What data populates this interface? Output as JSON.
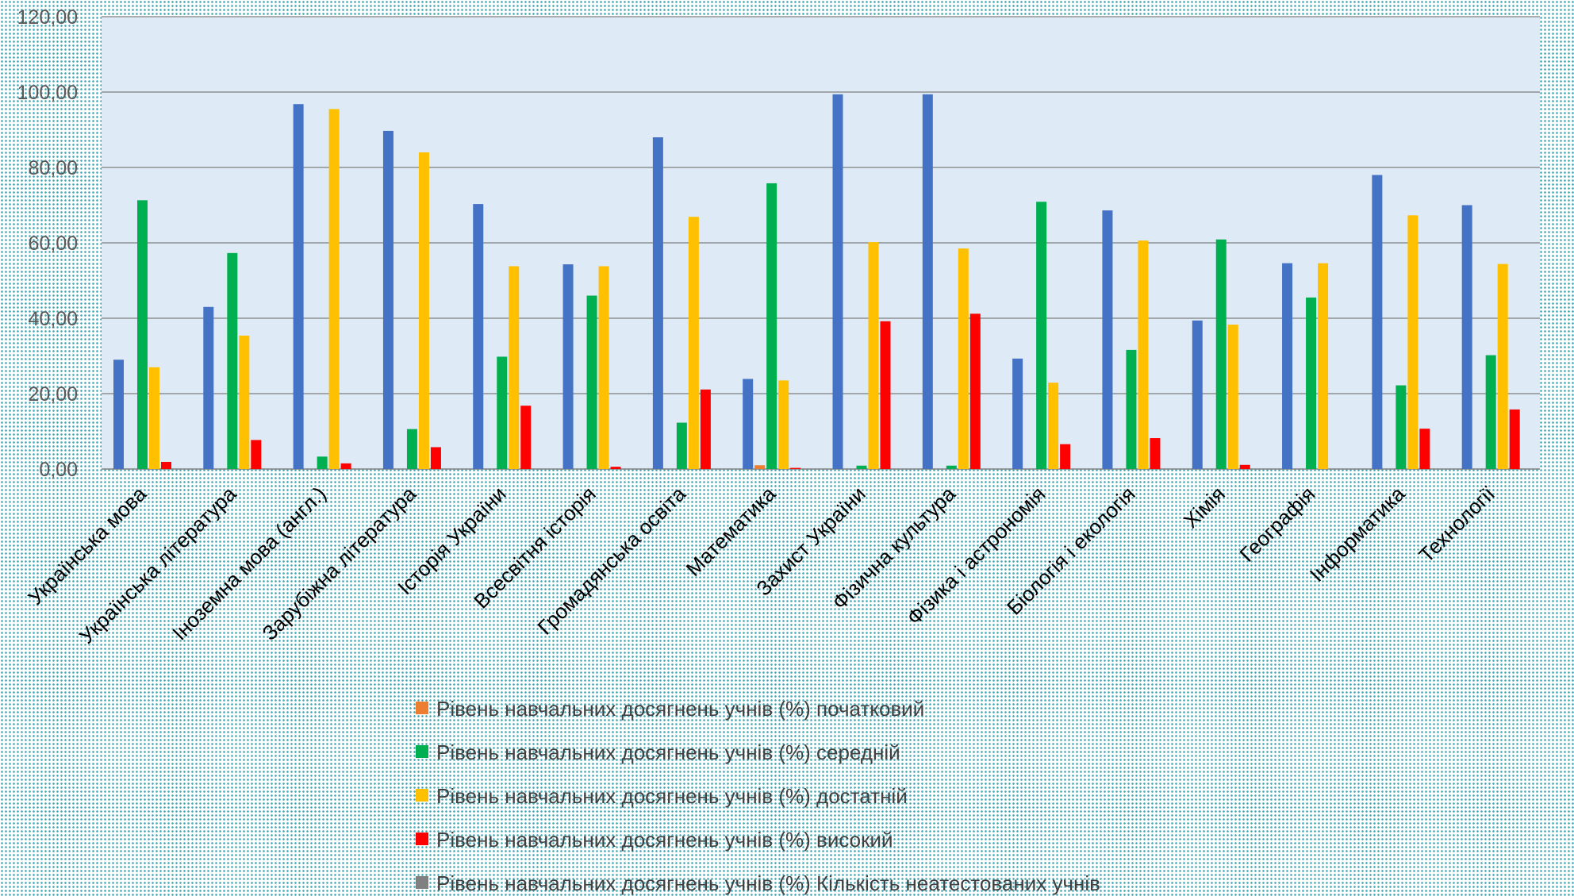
{
  "chart_data": {
    "type": "bar",
    "title": "",
    "xlabel": "",
    "ylabel": "",
    "ylim": [
      0,
      120
    ],
    "yticks": [
      0,
      20,
      40,
      60,
      80,
      100,
      120
    ],
    "ytick_labels": [
      "0,00",
      "20,00",
      "40,00",
      "60,00",
      "80,00",
      "100,00",
      "120,00"
    ],
    "grid": true,
    "legend_position": "bottom",
    "categories": [
      "Українська мова",
      "Українська література",
      "Іноземна мова (англ.)",
      "Зарубіжна література",
      "Історія України",
      "Всесвітня історія",
      "Громадянська освіта",
      "Математика",
      "Захист України",
      "Фізична культура",
      "Фізика і астрономія",
      "Біологія і екологія",
      "Хімія",
      "Географія",
      "Інформатика",
      "Технології"
    ],
    "series": [
      {
        "values": [
          29,
          43,
          96.8,
          89.7,
          70.3,
          54.3,
          88,
          23.9,
          99.4,
          99.4,
          29.3,
          68.6,
          39.4,
          54.6,
          78,
          70
        ],
        "color": "#4472C4",
        "in_legend": false
      },
      {
        "name": "Рівень навчальних досягнень учнів (%) початковий",
        "values": [
          0,
          0,
          0,
          0,
          0,
          0,
          0,
          1,
          0,
          0,
          0,
          0,
          0,
          0,
          0,
          0
        ],
        "color": "#ED7D31",
        "in_legend": true
      },
      {
        "name": "Рівень навчальних досягнень учнів (%) середній",
        "values": [
          71.3,
          57.3,
          3.3,
          10.6,
          29.8,
          46,
          12.3,
          75.8,
          0.9,
          0.9,
          70.9,
          31.6,
          60.9,
          45.5,
          22.2,
          30.2
        ],
        "color": "#00B050",
        "in_legend": true
      },
      {
        "name": "Рівень навчальних досягнень учнів (%) достатній",
        "values": [
          27,
          35.4,
          95.5,
          84,
          53.8,
          53.8,
          66.9,
          23.5,
          60.2,
          58.5,
          22.9,
          60.6,
          38.3,
          54.6,
          67.3,
          54.4
        ],
        "color": "#FFC000",
        "in_legend": true
      },
      {
        "name": "Рівень навчальних досягнень учнів (%) високий",
        "values": [
          1.9,
          7.7,
          1.5,
          5.8,
          16.8,
          0.6,
          21.1,
          0.3,
          39.2,
          41.2,
          6.6,
          8.2,
          1.1,
          0,
          10.7,
          15.8
        ],
        "color": "#FF0000",
        "in_legend": true
      },
      {
        "name": "Рівень навчальних досягнень учнів (%) Кількість неатестованих учнів",
        "values": [
          0,
          0,
          0,
          0,
          0,
          0,
          0,
          0,
          0,
          0,
          0,
          0,
          0,
          0,
          0,
          0
        ],
        "color": "#808080",
        "in_legend": true
      }
    ]
  },
  "style": {
    "plot_background": "#DEEAF6",
    "gridline_color": "#7F7F7F"
  }
}
